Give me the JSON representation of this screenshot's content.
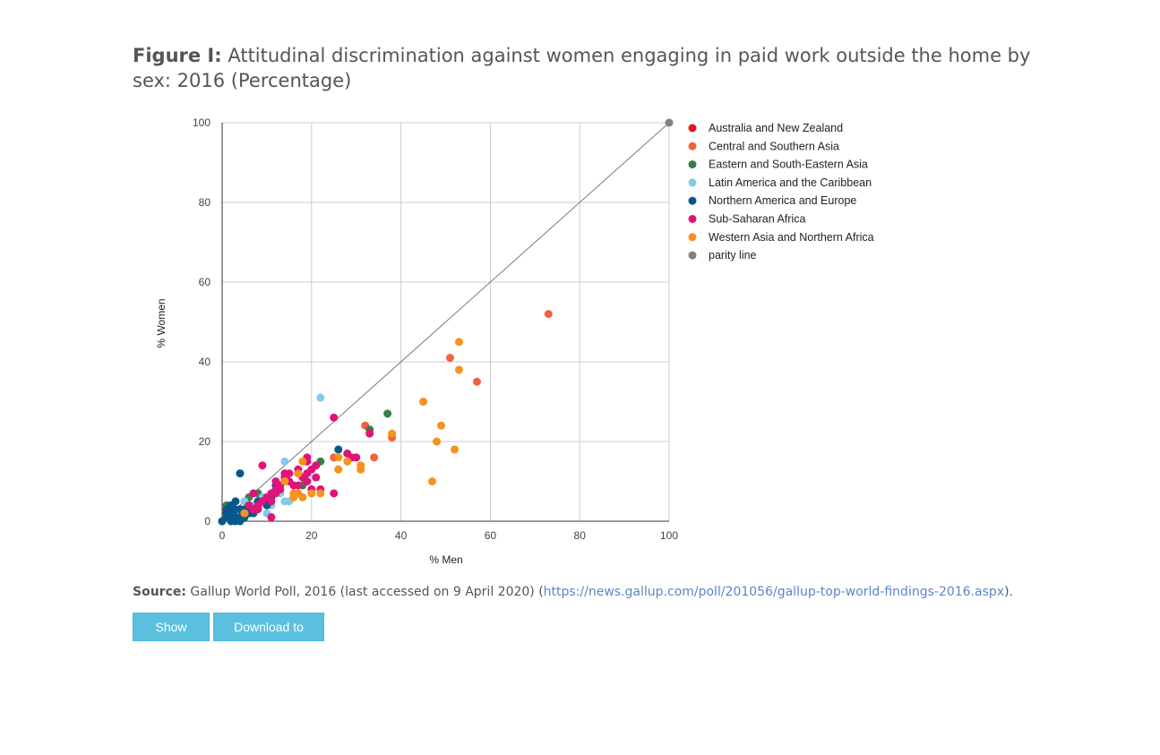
{
  "figure": {
    "label": "Figure I:",
    "title": "Attitudinal discrimination against women engaging in paid work outside the home by sex: 2016 (Percentage)"
  },
  "source": {
    "label": "Source:",
    "text_before": "Gallup World Poll, 2016 (last accessed on 9 April 2020) (",
    "link_text": "https://news.gallup.com/poll/201056/gallup-top-world-findings-2016.aspx",
    "text_after": ")."
  },
  "buttons": {
    "show_data": "Show Data",
    "download_csv": "Download to CSV"
  },
  "chart_data": {
    "type": "scatter",
    "xlabel": "% Men",
    "ylabel": "% Women",
    "xlim": [
      0,
      100
    ],
    "ylim": [
      0,
      100
    ],
    "xticks": [
      0,
      20,
      40,
      60,
      80,
      100
    ],
    "yticks": [
      0,
      20,
      40,
      60,
      80,
      100
    ],
    "grid": true,
    "legend_position": "right",
    "series": [
      {
        "name": "Australia and New Zealand",
        "color": "#e8141b",
        "points": [
          [
            1,
            2
          ],
          [
            2,
            1
          ]
        ]
      },
      {
        "name": "Central and Southern Asia",
        "color": "#f26141",
        "points": [
          [
            73,
            52
          ],
          [
            51,
            41
          ],
          [
            57,
            35
          ],
          [
            32,
            24
          ],
          [
            38,
            21
          ],
          [
            34,
            16
          ],
          [
            25,
            16
          ],
          [
            21,
            14
          ]
        ]
      },
      {
        "name": "Eastern and South-Eastern Asia",
        "color": "#3b7d47",
        "points": [
          [
            37,
            27
          ],
          [
            33,
            23
          ],
          [
            22,
            15
          ],
          [
            18,
            9
          ],
          [
            6,
            6
          ],
          [
            1,
            4
          ],
          [
            2,
            3
          ],
          [
            4,
            2
          ],
          [
            8,
            7
          ]
        ]
      },
      {
        "name": "Latin America and the Caribbean",
        "color": "#86c9ea",
        "points": [
          [
            22,
            31
          ],
          [
            14,
            15
          ],
          [
            15,
            5
          ],
          [
            14,
            5
          ],
          [
            11,
            4
          ],
          [
            16,
            9
          ],
          [
            10,
            2
          ],
          [
            7,
            4
          ],
          [
            5,
            5
          ],
          [
            9,
            6
          ],
          [
            13,
            7
          ],
          [
            3,
            2
          ]
        ]
      },
      {
        "name": "Northern America and Europe",
        "color": "#07588c",
        "points": [
          [
            4,
            12
          ],
          [
            26,
            18
          ],
          [
            3,
            5
          ],
          [
            2,
            4
          ],
          [
            8,
            5
          ],
          [
            10,
            6
          ],
          [
            12,
            9
          ],
          [
            1,
            1
          ],
          [
            2,
            0
          ],
          [
            3,
            1
          ],
          [
            4,
            0
          ],
          [
            5,
            2
          ],
          [
            6,
            3
          ],
          [
            7,
            2
          ],
          [
            1,
            3
          ],
          [
            2,
            2
          ],
          [
            3,
            3
          ],
          [
            4,
            1
          ],
          [
            0,
            0
          ],
          [
            2,
            1
          ],
          [
            5,
            3
          ],
          [
            6,
            2
          ],
          [
            8,
            4
          ],
          [
            9,
            5
          ],
          [
            10,
            4
          ],
          [
            11,
            6
          ],
          [
            3,
            0
          ],
          [
            1,
            2
          ],
          [
            4,
            3
          ],
          [
            5,
            1
          ]
        ]
      },
      {
        "name": "Sub-Saharan Africa",
        "color": "#e0137b",
        "points": [
          [
            25,
            26
          ],
          [
            33,
            22
          ],
          [
            9,
            14
          ],
          [
            11,
            1
          ],
          [
            12,
            10
          ],
          [
            14,
            12
          ],
          [
            15,
            10
          ],
          [
            16,
            9
          ],
          [
            17,
            13
          ],
          [
            19,
            15
          ],
          [
            19,
            16
          ],
          [
            20,
            13
          ],
          [
            21,
            11
          ],
          [
            21,
            14
          ],
          [
            22,
            8
          ],
          [
            25,
            7
          ],
          [
            28,
            17
          ],
          [
            29,
            16
          ],
          [
            30,
            16
          ],
          [
            19,
            12
          ],
          [
            20,
            8
          ],
          [
            19,
            10
          ],
          [
            13,
            8
          ],
          [
            14,
            11
          ],
          [
            11,
            7
          ],
          [
            12,
            8
          ],
          [
            10,
            6
          ],
          [
            8,
            4
          ],
          [
            7,
            3
          ],
          [
            9,
            5
          ],
          [
            6,
            4
          ],
          [
            5,
            2
          ],
          [
            7,
            7
          ],
          [
            8,
            3
          ],
          [
            11,
            5
          ],
          [
            12,
            7
          ],
          [
            13,
            9
          ],
          [
            15,
            12
          ],
          [
            17,
            9
          ],
          [
            18,
            11
          ]
        ]
      },
      {
        "name": "Western Asia and Northern Africa",
        "color": "#f6921e",
        "points": [
          [
            53,
            45
          ],
          [
            53,
            38
          ],
          [
            45,
            30
          ],
          [
            49,
            24
          ],
          [
            38,
            22
          ],
          [
            48,
            20
          ],
          [
            52,
            18
          ],
          [
            47,
            10
          ],
          [
            28,
            15
          ],
          [
            31,
            14
          ],
          [
            31,
            13
          ],
          [
            26,
            13
          ],
          [
            26,
            16
          ],
          [
            18,
            15
          ],
          [
            17,
            12
          ],
          [
            16,
            7
          ],
          [
            17,
            7
          ],
          [
            18,
            6
          ],
          [
            20,
            7
          ],
          [
            22,
            7
          ],
          [
            5,
            2
          ],
          [
            16,
            6
          ],
          [
            14,
            10
          ]
        ]
      },
      {
        "name": "parity line",
        "color": "#808080",
        "points": [
          [
            0,
            0
          ],
          [
            100,
            100
          ]
        ]
      }
    ]
  }
}
